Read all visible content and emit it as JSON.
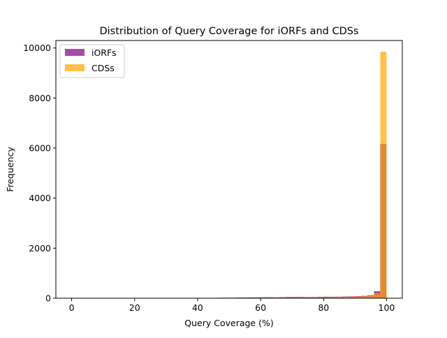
{
  "chart_data": {
    "type": "bar",
    "subtype": "overlaid-histogram",
    "title": "Distribution of Query Coverage for iORFs and CDSs",
    "xlabel": "Query Coverage (%)",
    "ylabel": "Frequency",
    "xlim": [
      -5,
      105
    ],
    "ylim": [
      0,
      10300
    ],
    "xticks": [
      0,
      20,
      40,
      60,
      80,
      100
    ],
    "yticks": [
      0,
      2000,
      4000,
      6000,
      8000,
      10000
    ],
    "xtick_labels": [
      "0",
      "20",
      "40",
      "60",
      "80",
      "100"
    ],
    "ytick_labels": [
      "0",
      "2000",
      "4000",
      "6000",
      "8000",
      "10000"
    ],
    "grid": false,
    "legend": {
      "placement": "upper-left",
      "entries": [
        "iORFs",
        "CDSs"
      ]
    },
    "bin_edges": [
      38,
      40,
      42,
      44,
      46,
      48,
      50,
      52,
      54,
      56,
      58,
      60,
      62,
      64,
      66,
      68,
      70,
      72,
      74,
      76,
      78,
      80,
      82,
      84,
      86,
      88,
      90,
      92,
      94,
      96,
      98,
      100
    ],
    "series": [
      {
        "name": "iORFs",
        "color": "#800080",
        "alpha": 0.7,
        "values": [
          15,
          10,
          8,
          12,
          18,
          22,
          20,
          25,
          28,
          30,
          32,
          38,
          40,
          35,
          42,
          50,
          52,
          50,
          45,
          48,
          55,
          60,
          58,
          62,
          70,
          75,
          85,
          95,
          120,
          280,
          6170
        ]
      },
      {
        "name": "CDSs",
        "color": "#FFA500",
        "alpha": 0.7,
        "values": [
          2,
          3,
          3,
          4,
          5,
          6,
          8,
          10,
          12,
          14,
          16,
          20,
          22,
          24,
          26,
          28,
          30,
          32,
          34,
          36,
          38,
          42,
          46,
          50,
          55,
          60,
          70,
          80,
          100,
          190,
          9850
        ]
      }
    ]
  }
}
